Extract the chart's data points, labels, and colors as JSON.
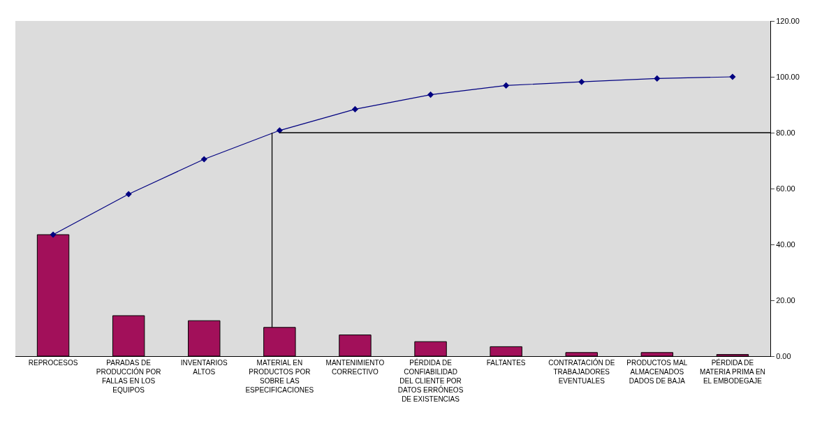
{
  "chart_data": {
    "type": "bar",
    "categories": [
      "REPROCESOS",
      "PARADAS DE PRODUCCIÓN POR FALLAS EN LOS EQUIPOS",
      "INVENTARIOS ALTOS",
      "MATERIAL EN PRODUCTOS POR SOBRE LAS ESPECIFICACIONES",
      "MANTENIMIENTO CORRECTIVO",
      "PÉRDIDA DE CONFIABILIDAD DEL CLIENTE POR DATOS ERRÓNEOS DE EXISTENCIAS",
      "FALTANTES",
      "CONTRATACIÓN DE TRABAJADORES EVENTUALES",
      "PRODUCTOS MAL ALMACENADOS DADOS DE BAJA",
      "PÉRDIDA DE MATERIA PRIMA EN EL EMBODEGAJE"
    ],
    "series": [
      {
        "color": "#a2105a",
        "values": [
          43.5,
          14.5,
          12.7,
          10.3,
          7.6,
          5.2,
          3.4,
          1.3,
          1.3,
          0.6
        ]
      },
      {
        "type": "line",
        "color": "#000080",
        "marker": "diamond",
        "values": [
          43.5,
          58.0,
          70.5,
          80.8,
          88.4,
          93.6,
          96.9,
          98.2,
          99.4,
          100.0
        ]
      }
    ],
    "ylim": [
      0,
      120
    ],
    "yticks": [
      {
        "value": 0,
        "label": "0.00"
      },
      {
        "value": 20,
        "label": "20.00"
      },
      {
        "value": 40,
        "label": "40.00"
      },
      {
        "value": 60,
        "label": "60.00"
      },
      {
        "value": 80,
        "label": "80.00"
      },
      {
        "value": 100,
        "label": "100.00"
      },
      {
        "value": 120,
        "label": "120.00"
      }
    ],
    "ref_lines": [
      {
        "axis": "y",
        "value": 80,
        "color": "#000000"
      },
      {
        "axis": "x",
        "value": "MATERIAL EN PRODUCTOS POR SOBRE LAS ESPECIFICACIONES",
        "color": "#000000"
      }
    ],
    "grid": false
  }
}
